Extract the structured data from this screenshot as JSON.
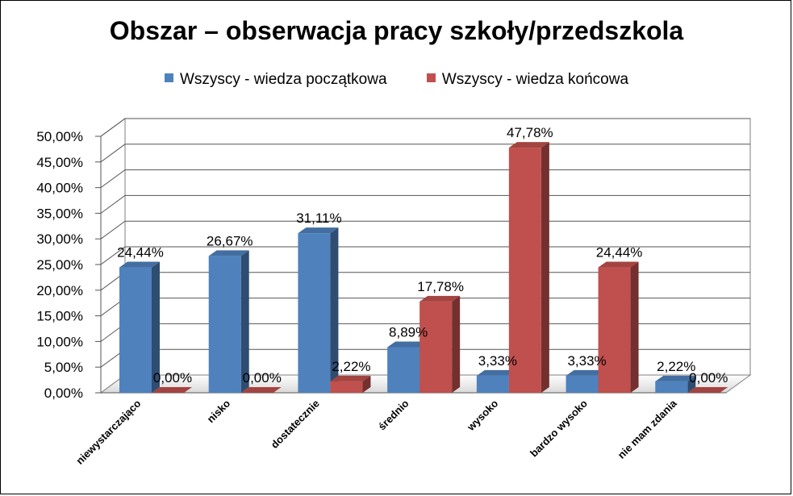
{
  "chart_data": {
    "type": "bar",
    "title": "Obszar – obserwacja pracy szkoły/przedszkola",
    "categories": [
      "niewystarczająco",
      "nisko",
      "dostatecznie",
      "średnio",
      "wysoko",
      "bardzo wysoko",
      "nie mam zdania"
    ],
    "series": [
      {
        "name": "Wszyscy - wiedza początkowa",
        "color": "#4F81BD",
        "values": [
          24.44,
          26.67,
          31.11,
          8.89,
          3.33,
          3.33,
          2.22
        ],
        "labels": [
          "24,44%",
          "26,67%",
          "31,11%",
          "8,89%",
          "3,33%",
          "3,33%",
          "2,22%"
        ]
      },
      {
        "name": "Wszyscy - wiedza końcowa",
        "color": "#C0504D",
        "values": [
          0.0,
          0.0,
          2.22,
          17.78,
          47.78,
          24.44,
          0.0
        ],
        "labels": [
          "0,00%",
          "0,00%",
          "2,22%",
          "17,78%",
          "47,78%",
          "24,44%",
          "0,00%"
        ]
      }
    ],
    "y_ticks": [
      "0,00%",
      "5,00%",
      "10,00%",
      "15,00%",
      "20,00%",
      "25,00%",
      "30,00%",
      "35,00%",
      "40,00%",
      "45,00%",
      "50,00%"
    ],
    "ylim": [
      0,
      50
    ],
    "grid": true,
    "legend_position": "top"
  }
}
